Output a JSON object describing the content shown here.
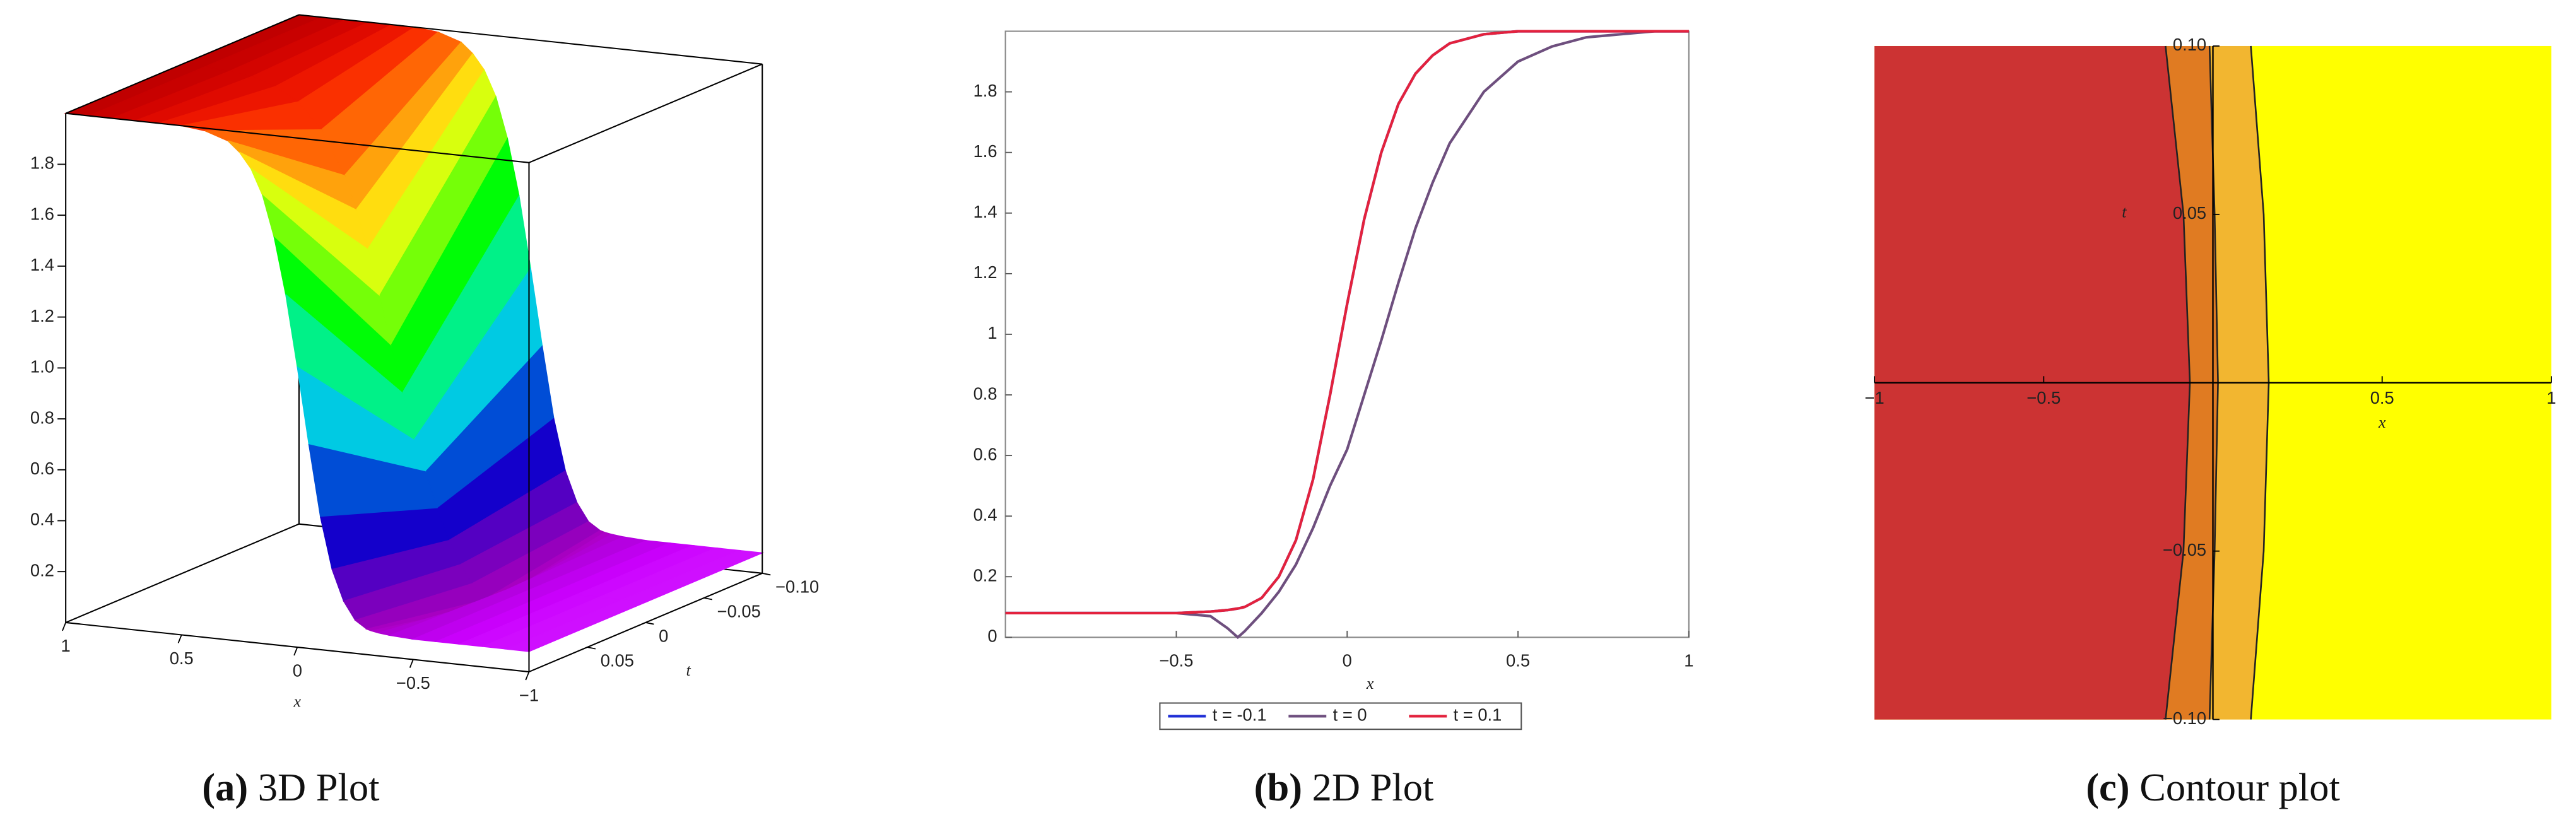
{
  "chart_data": [
    {
      "type": "surface3d",
      "caption_label": "(a)",
      "caption": "3D Plot",
      "x_label": "x",
      "t_label": "t",
      "x": [
        -1,
        -0.9,
        -0.8,
        -0.7,
        -0.6,
        -0.5,
        -0.4,
        -0.35,
        -0.32,
        -0.3,
        -0.25,
        -0.2,
        -0.15,
        -0.1,
        -0.05,
        0,
        0.05,
        0.1,
        0.15,
        0.2,
        0.25,
        0.3,
        0.4,
        0.5,
        0.6,
        0.7,
        0.8,
        0.9,
        1
      ],
      "t": [
        -0.1,
        0,
        0.1
      ],
      "z": [
        [
          0.08,
          0.08,
          0.08,
          0.08,
          0.08,
          0.08,
          0.085,
          0.09,
          0.095,
          0.1,
          0.13,
          0.2,
          0.32,
          0.52,
          0.8,
          1.1,
          1.38,
          1.6,
          1.76,
          1.86,
          1.92,
          1.96,
          1.99,
          2,
          2,
          2,
          2,
          2,
          2
        ],
        [
          0.08,
          0.08,
          0.08,
          0.08,
          0.08,
          0.08,
          0.07,
          0.03,
          0,
          0.02,
          0.08,
          0.15,
          0.24,
          0.36,
          0.5,
          0.62,
          0.8,
          0.98,
          1.17,
          1.35,
          1.5,
          1.63,
          1.8,
          1.9,
          1.95,
          1.98,
          1.99,
          2,
          2
        ],
        [
          0.08,
          0.08,
          0.08,
          0.08,
          0.08,
          0.08,
          0.085,
          0.09,
          0.095,
          0.1,
          0.13,
          0.2,
          0.32,
          0.52,
          0.8,
          1.1,
          1.38,
          1.6,
          1.76,
          1.86,
          1.92,
          1.96,
          1.99,
          2,
          2,
          2,
          2,
          2,
          2
        ]
      ],
      "xlim": [
        -1,
        1
      ],
      "tlim": [
        -0.1,
        0.1
      ],
      "zlim": [
        0,
        2
      ],
      "xticks": [
        1,
        0.5,
        0,
        {
          "value": -0.5,
          "label": "−0.5"
        },
        {
          "value": -1,
          "label": "−1"
        }
      ],
      "tticks": [
        {
          "value": -0.1,
          "label": "−0.10"
        },
        {
          "value": -0.05,
          "label": "−0.05"
        },
        0,
        0.05
      ],
      "zticks": [
        0.2,
        0.4,
        0.6,
        0.8,
        {
          "value": 1,
          "label": "1.0"
        },
        1.2,
        1.4,
        1.6,
        1.8
      ]
    },
    {
      "type": "line",
      "caption_label": "(b)",
      "caption": "2D Plot",
      "x_label": "x",
      "x": [
        -1,
        -0.9,
        -0.8,
        -0.7,
        -0.6,
        -0.5,
        -0.4,
        -0.35,
        -0.32,
        -0.3,
        -0.25,
        -0.2,
        -0.15,
        -0.1,
        -0.05,
        0,
        0.05,
        0.1,
        0.15,
        0.2,
        0.25,
        0.3,
        0.4,
        0.5,
        0.6,
        0.7,
        0.8,
        0.9,
        1
      ],
      "series": [
        {
          "name": "t = -0.1",
          "color": "#1f2fd6",
          "values": [
            0.08,
            0.08,
            0.08,
            0.08,
            0.08,
            0.08,
            0.085,
            0.09,
            0.095,
            0.1,
            0.13,
            0.2,
            0.32,
            0.52,
            0.8,
            1.1,
            1.38,
            1.6,
            1.76,
            1.86,
            1.92,
            1.96,
            1.99,
            2,
            2,
            2,
            2,
            2,
            2
          ]
        },
        {
          "name": "t = 0",
          "color": "#6e4f7e",
          "values": [
            0.08,
            0.08,
            0.08,
            0.08,
            0.08,
            0.08,
            0.07,
            0.03,
            0,
            0.02,
            0.08,
            0.15,
            0.24,
            0.36,
            0.5,
            0.62,
            0.8,
            0.98,
            1.17,
            1.35,
            1.5,
            1.63,
            1.8,
            1.9,
            1.95,
            1.98,
            1.99,
            2,
            2
          ]
        },
        {
          "name": "t = 0.1",
          "color": "#e3223d",
          "values": [
            0.08,
            0.08,
            0.08,
            0.08,
            0.08,
            0.08,
            0.085,
            0.09,
            0.095,
            0.1,
            0.13,
            0.2,
            0.32,
            0.52,
            0.8,
            1.1,
            1.38,
            1.6,
            1.76,
            1.86,
            1.92,
            1.96,
            1.99,
            2,
            2,
            2,
            2,
            2,
            2
          ]
        }
      ],
      "xlim": [
        -1,
        1
      ],
      "ylim": [
        0,
        2
      ],
      "xticks": [
        {
          "value": -0.5,
          "label": "−0.5"
        },
        0,
        0.5,
        1
      ],
      "yticks": [
        0,
        0.2,
        0.4,
        0.6,
        0.8,
        1,
        1.2,
        1.4,
        1.6,
        1.8
      ],
      "legend": "bottom"
    },
    {
      "type": "contour",
      "caption_label": "(c)",
      "caption": "Contour plot",
      "x_label": "x",
      "t_label": "t",
      "xlim": [
        -1,
        1
      ],
      "ylim": [
        -0.1,
        0.1
      ],
      "xticks": [
        {
          "value": -1,
          "label": "−1"
        },
        {
          "value": -0.5,
          "label": "−0.5"
        },
        0.5,
        1
      ],
      "yticks": [
        {
          "value": -0.1,
          "label": "−0.10"
        },
        {
          "value": -0.05,
          "label": "−0.05"
        },
        0.05,
        {
          "value": 0.1,
          "label": "0.10"
        }
      ],
      "background": "#ffff00",
      "t": [
        -0.1,
        -0.05,
        0,
        0.05,
        0.1
      ],
      "contours": [
        {
          "color": "#cc3333",
          "x": [
            -0.14,
            -0.087,
            -0.068,
            -0.087,
            -0.14
          ]
        },
        {
          "color": "#e07b22",
          "x": [
            -0.01,
            0.005,
            0.015,
            0.005,
            -0.01
          ]
        },
        {
          "color": "#f2b630",
          "x": [
            0.112,
            0.15,
            0.165,
            0.15,
            0.112
          ]
        }
      ]
    }
  ]
}
